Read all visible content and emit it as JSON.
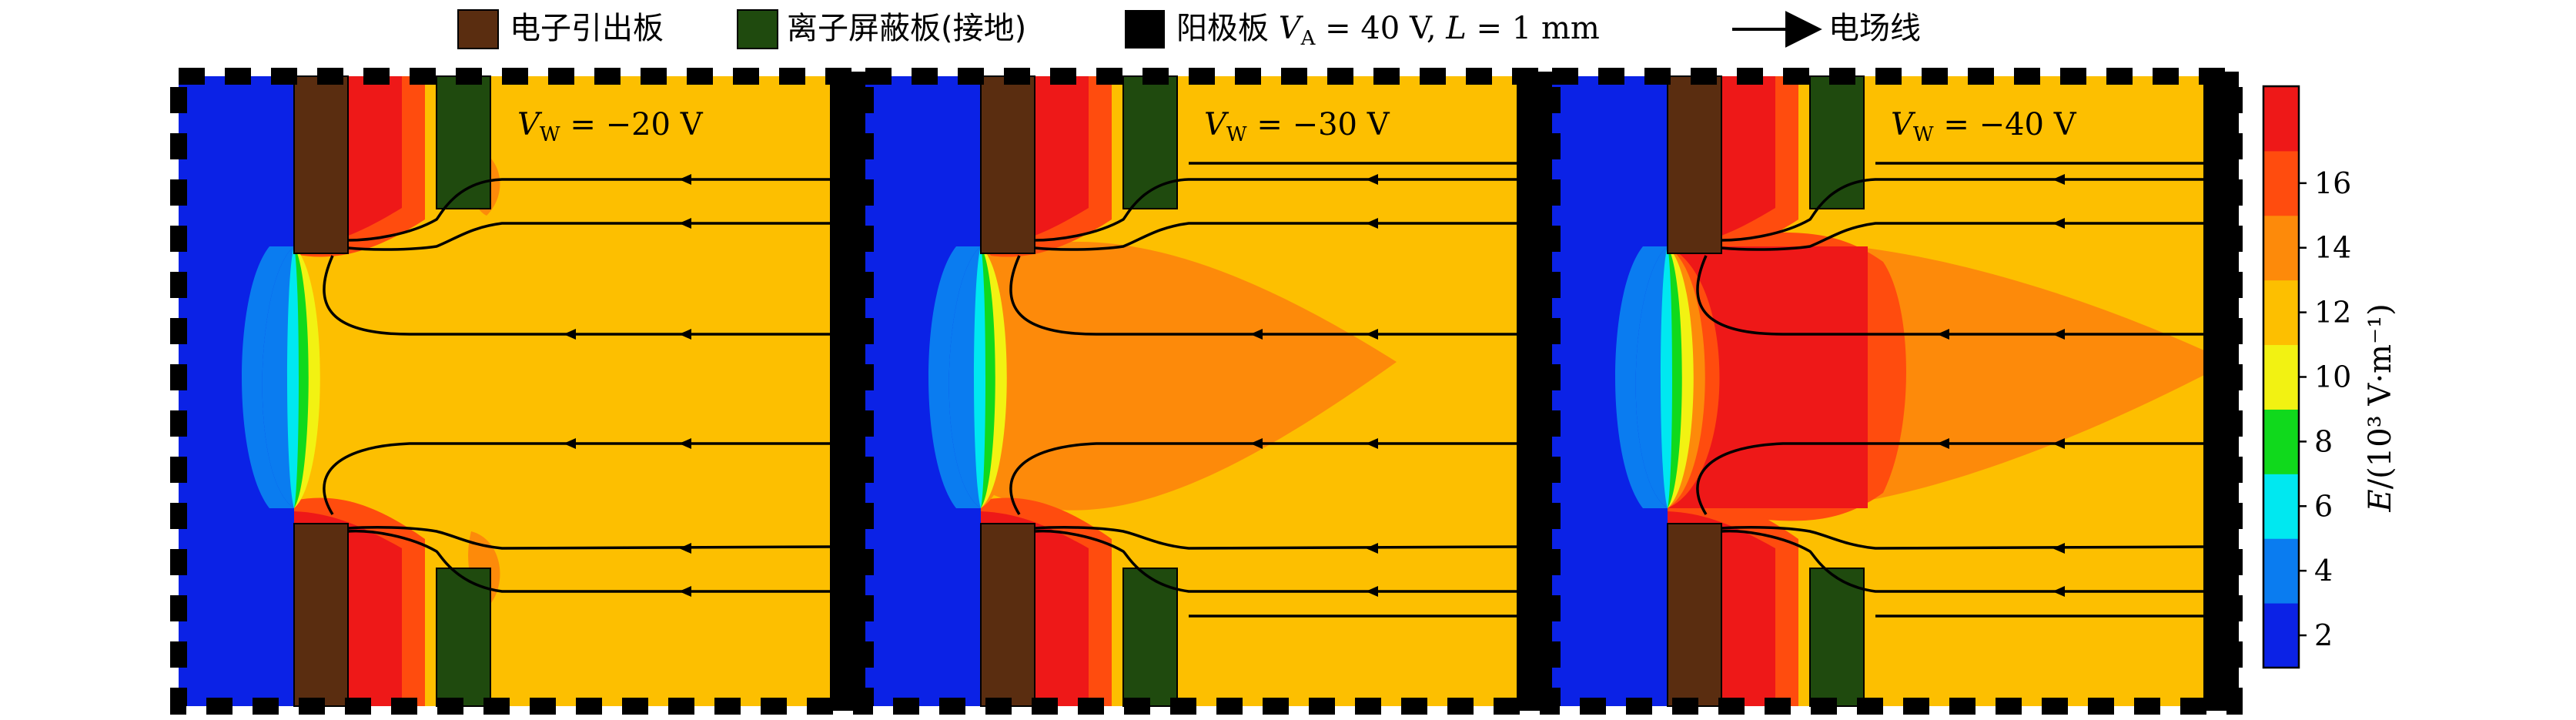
{
  "legend": {
    "items": [
      {
        "label": "电子引出板",
        "color": "#5a2d10"
      },
      {
        "label": "离子屏蔽板(接地)",
        "color": "#1f4a0e"
      },
      {
        "label": "阳极板 Vₐ = 40 V, L = 1 mm",
        "color": "#000000"
      },
      {
        "label": "电场线",
        "color": "#000000"
      }
    ],
    "anode_text": "阳极板 ",
    "anode_va": "V",
    "anode_va_sub": "A",
    "anode_rest": " = 40 V, ",
    "anode_L": "L",
    "anode_L_rest": " = 1 mm",
    "field_line_label": "电场线"
  },
  "panels": [
    {
      "voltage_var": "V",
      "voltage_sub": "W",
      "voltage_value": " = −20 V",
      "level": 1
    },
    {
      "voltage_var": "V",
      "voltage_sub": "W",
      "voltage_value": " = −30 V",
      "level": 2
    },
    {
      "voltage_var": "V",
      "voltage_sub": "W",
      "voltage_value": " = −40 V",
      "level": 3
    }
  ],
  "colorbar": {
    "label_var": "E",
    "label_rest": "/(10³ V·m⁻¹)",
    "ticks": [
      "2",
      "4",
      "6",
      "8",
      "10",
      "12",
      "14",
      "16"
    ],
    "colors": [
      "#0b22e6",
      "#0a7cf0",
      "#00e8f0",
      "#10d91c",
      "#f2f212",
      "#fdbf00",
      "#fd8a0a",
      "#ff4c0e",
      "#ee1818"
    ]
  },
  "colors": {
    "electron_plate": "#5a2d10",
    "ion_shield": "#1f4a0e",
    "anode": "#000000"
  }
}
